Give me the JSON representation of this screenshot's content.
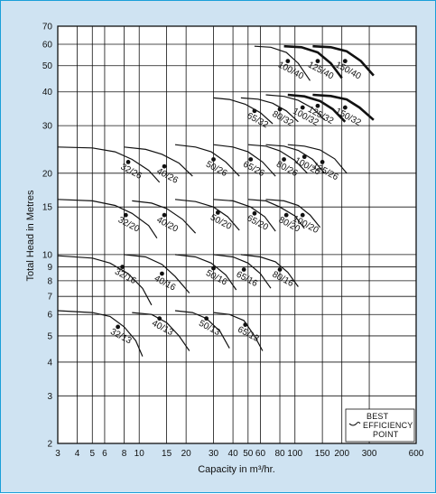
{
  "chart_data": {
    "type": "line",
    "title": "",
    "xlabel": "Capacity in m³/hr.",
    "ylabel": "Total Head in Metres",
    "xscale": "log",
    "yscale": "log",
    "xlim": [
      3,
      600
    ],
    "ylim": [
      2,
      70
    ],
    "grid": true,
    "x_ticks": [
      3,
      4,
      5,
      6,
      8,
      10,
      15,
      20,
      30,
      40,
      50,
      60,
      80,
      100,
      150,
      200,
      300,
      600
    ],
    "y_ticks": [
      2,
      3,
      4,
      5,
      6,
      7,
      8,
      9,
      10,
      15,
      20,
      30,
      40,
      50,
      60,
      70
    ],
    "legend": {
      "placement": "bottom-right",
      "lines": [
        "BEST",
        "EFFICIENCY",
        "POINT"
      ]
    },
    "colors": {
      "background": "#cfe3f2",
      "border": "#1a9fd9",
      "ink": "#111111"
    },
    "series": [
      {
        "name": "32/13",
        "head": [
          6.2,
          6.1,
          5.9,
          5.4,
          4.8,
          4.2
        ],
        "capacity": [
          3,
          5,
          6.5,
          8,
          9.5,
          10.5
        ],
        "bep": [
          7.3,
          5.4
        ]
      },
      {
        "name": "40/13",
        "head": [
          6.1,
          6.0,
          5.6,
          5.0,
          4.4
        ],
        "capacity": [
          9,
          12,
          15,
          18,
          21
        ],
        "bep": [
          13.5,
          5.8
        ]
      },
      {
        "name": "50/13",
        "head": [
          6.2,
          6.1,
          5.8,
          5.2,
          4.5
        ],
        "capacity": [
          17,
          22,
          27,
          33,
          38
        ],
        "bep": [
          27,
          5.8
        ]
      },
      {
        "name": "65/13",
        "head": [
          6.1,
          6.0,
          5.7,
          5.0,
          4.4
        ],
        "capacity": [
          30,
          38,
          47,
          55,
          62
        ],
        "bep": [
          48,
          5.5
        ]
      },
      {
        "name": "32/16",
        "head": [
          9.9,
          9.7,
          9.3,
          8.5,
          7.5,
          6.5
        ],
        "capacity": [
          3,
          5,
          6.5,
          8.5,
          10.5,
          12
        ],
        "bep": [
          7.8,
          9.0
        ]
      },
      {
        "name": "40/16",
        "head": [
          10.0,
          9.8,
          9.2,
          8.3,
          7.2
        ],
        "capacity": [
          8,
          11,
          14,
          17,
          21
        ],
        "bep": [
          14,
          8.5
        ]
      },
      {
        "name": "50/16",
        "head": [
          10.0,
          9.8,
          9.3,
          8.4,
          7.4
        ],
        "capacity": [
          17,
          23,
          29,
          36,
          42
        ],
        "bep": [
          30,
          8.9
        ]
      },
      {
        "name": "65/16",
        "head": [
          10.0,
          9.8,
          9.3,
          8.5,
          7.5
        ],
        "capacity": [
          30,
          40,
          50,
          60,
          70
        ],
        "bep": [
          47,
          8.8
        ]
      },
      {
        "name": "80/16",
        "head": [
          10.0,
          9.8,
          9.4,
          8.6,
          7.6
        ],
        "capacity": [
          45,
          60,
          75,
          90,
          105
        ],
        "bep": [
          80,
          8.8
        ]
      },
      {
        "name": "32/20",
        "head": [
          16,
          15.8,
          15.2,
          14.2,
          12.8,
          11.5
        ],
        "capacity": [
          3,
          5,
          7,
          9,
          11.5,
          13
        ],
        "bep": [
          8.2,
          14.0
        ]
      },
      {
        "name": "40/20",
        "head": [
          15.8,
          15.5,
          14.8,
          13.5,
          12.0
        ],
        "capacity": [
          9,
          12,
          15,
          19,
          23
        ],
        "bep": [
          14.5,
          14.0
        ]
      },
      {
        "name": "50/20",
        "head": [
          16,
          15.7,
          15.0,
          13.8,
          12.3
        ],
        "capacity": [
          17,
          23,
          30,
          37,
          44
        ],
        "bep": [
          32,
          14.3
        ]
      },
      {
        "name": "65/20",
        "head": [
          16,
          15.8,
          15.0,
          13.8,
          12.2
        ],
        "capacity": [
          30,
          40,
          52,
          64,
          75
        ],
        "bep": [
          55,
          14.2
        ]
      },
      {
        "name": "80/20",
        "head": [
          16,
          15.8,
          15.0,
          13.9,
          12.5
        ],
        "capacity": [
          50,
          65,
          80,
          100,
          115
        ],
        "bep": [
          88,
          14.0
        ]
      },
      {
        "name": "100/20",
        "head": [
          16,
          15.8,
          15.2,
          14.0,
          12.6
        ],
        "capacity": [
          65,
          85,
          105,
          125,
          145
        ],
        "bep": [
          112,
          14.0
        ]
      },
      {
        "name": "32/26",
        "head": [
          25,
          24.8,
          24.0,
          22.5,
          20.5,
          18.5
        ],
        "capacity": [
          3,
          5,
          7,
          9,
          11.5,
          13.5
        ],
        "bep": [
          8.5,
          22.0
        ]
      },
      {
        "name": "40/26",
        "head": [
          25,
          24.5,
          23.5,
          21.8,
          19.5
        ],
        "capacity": [
          8,
          11,
          14,
          18,
          22
        ],
        "bep": [
          14.5,
          21.2
        ]
      },
      {
        "name": "50/26",
        "head": [
          25.5,
          25.0,
          24.0,
          22.0,
          19.5
        ],
        "capacity": [
          17,
          23,
          29,
          36,
          44
        ],
        "bep": [
          30,
          22.5
        ]
      },
      {
        "name": "65/26",
        "head": [
          25.5,
          25.0,
          24.0,
          22.0,
          19.5
        ],
        "capacity": [
          30,
          40,
          50,
          62,
          75
        ],
        "bep": [
          52,
          22.5
        ]
      },
      {
        "name": "80/26",
        "head": [
          25.5,
          25.2,
          24.2,
          22.3,
          20.0
        ],
        "capacity": [
          50,
          65,
          80,
          100,
          120
        ],
        "bep": [
          85,
          22.5
        ]
      },
      {
        "name": "100/26",
        "head": [
          25.5,
          25.2,
          24.3,
          22.5,
          20.0
        ],
        "capacity": [
          65,
          85,
          105,
          130,
          155
        ],
        "bep": [
          115,
          23.0
        ]
      },
      {
        "name": "125/26",
        "head": [
          25.5,
          25.2,
          24.4,
          22.6,
          20.0
        ],
        "capacity": [
          90,
          115,
          145,
          180,
          215
        ],
        "bep": [
          150,
          22.0
        ]
      },
      {
        "name": "65/32",
        "head": [
          38,
          37.5,
          36,
          33.5,
          30.5
        ],
        "capacity": [
          30,
          38,
          48,
          60,
          72
        ],
        "bep": [
          55,
          34.0
        ]
      },
      {
        "name": "80/32",
        "head": [
          38,
          37.6,
          36.3,
          34.0,
          31.0
        ],
        "capacity": [
          45,
          58,
          72,
          88,
          105
        ],
        "bep": [
          80,
          34.5
        ]
      },
      {
        "name": "100/32",
        "head": [
          39,
          38.5,
          37.2,
          34.8,
          31.5
        ],
        "capacity": [
          65,
          85,
          105,
          130,
          155
        ],
        "bep": [
          112,
          35.0
        ]
      },
      {
        "name": "125/32",
        "head": [
          39,
          38.5,
          37.0,
          34.5,
          31.0
        ],
        "capacity": [
          90,
          115,
          145,
          175,
          210
        ],
        "bep": [
          140,
          35.5
        ]
      },
      {
        "name": "150/32",
        "head": [
          39,
          38.6,
          37.5,
          35.0,
          31.5
        ],
        "capacity": [
          130,
          170,
          215,
          260,
          320
        ],
        "bep": [
          210,
          35.0
        ]
      },
      {
        "name": "100/40",
        "head": [
          59,
          58.5,
          56,
          51,
          44
        ],
        "capacity": [
          55,
          70,
          88,
          105,
          125
        ],
        "bep": [
          90,
          52
        ]
      },
      {
        "name": "125/40",
        "head": [
          59,
          58.5,
          56,
          51,
          45
        ],
        "capacity": [
          85,
          110,
          140,
          170,
          200
        ],
        "bep": [
          140,
          52
        ]
      },
      {
        "name": "150/40",
        "head": [
          59,
          58.5,
          56.5,
          52,
          46
        ],
        "capacity": [
          130,
          170,
          215,
          265,
          320
        ],
        "bep": [
          210,
          52
        ]
      }
    ]
  }
}
